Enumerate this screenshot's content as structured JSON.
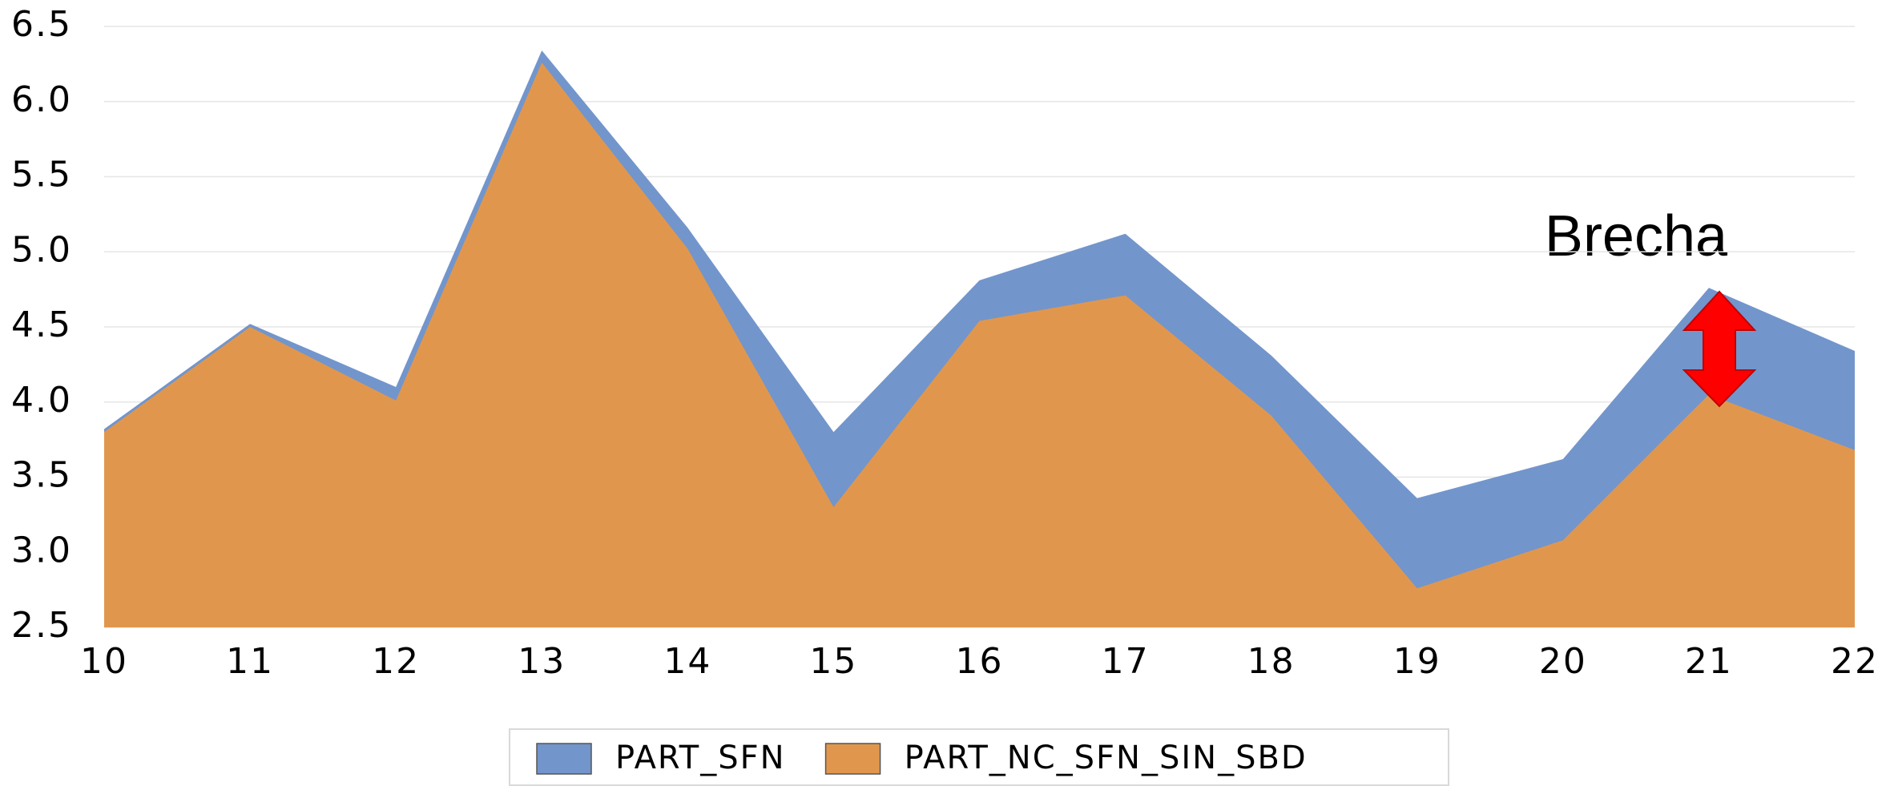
{
  "chart_data": {
    "type": "area",
    "x": [
      10,
      11,
      12,
      13,
      14,
      15,
      16,
      17,
      18,
      19,
      20,
      21,
      22
    ],
    "series": [
      {
        "name": "PART_SFN",
        "color": "#7295cc",
        "values": [
          3.82,
          4.52,
          4.1,
          6.34,
          5.16,
          3.8,
          4.81,
          5.12,
          4.31,
          3.36,
          3.62,
          4.76,
          4.34
        ]
      },
      {
        "name": "PART_NC_SFN_SIN_SBD",
        "color": "#e0974d",
        "values": [
          3.8,
          4.5,
          4.01,
          6.26,
          5.02,
          3.3,
          4.54,
          4.71,
          3.91,
          2.76,
          3.08,
          4.05,
          3.68
        ]
      }
    ],
    "xlim": [
      10,
      22
    ],
    "xticks": [
      10,
      11,
      12,
      13,
      14,
      15,
      16,
      17,
      18,
      19,
      20,
      21,
      22
    ],
    "ylim": [
      2.5,
      6.5
    ],
    "yticks": [
      2.5,
      {
        "value": 3,
        "label": "3.0"
      },
      3.5,
      {
        "value": 4,
        "label": "4.0"
      },
      4.5,
      {
        "value": 5,
        "label": "5.0"
      },
      5.5,
      {
        "value": 6,
        "label": "6.0"
      },
      6.5
    ],
    "grid": true,
    "legend": "bottom",
    "annotation": "Brecha"
  }
}
